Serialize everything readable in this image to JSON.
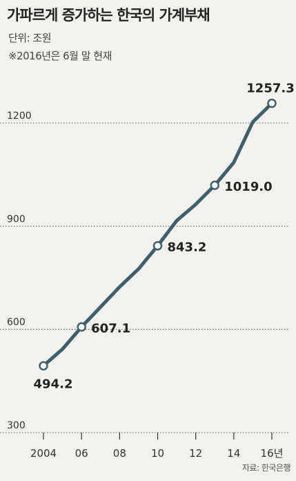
{
  "header": {
    "title": "가파르게 증가하는 한국의 가계부채",
    "unit": "단위: 조원",
    "note": "※2016년은 6월 말 현재"
  },
  "source": "자료: 한국은행",
  "colors": {
    "line": "#405f6a",
    "marker_fill": "#ffffff",
    "grid": "#555555",
    "background": "#f2f1ee",
    "text": "#222222"
  },
  "chart_data": {
    "type": "line",
    "x": [
      2004,
      2005,
      2006,
      2007,
      2008,
      2009,
      2010,
      2011,
      2012,
      2013,
      2014,
      2015,
      2016
    ],
    "series": [
      {
        "values": [
          494.2,
          542.9,
          607.1,
          665.4,
          723.5,
          776.0,
          843.2,
          916.2,
          963.8,
          1019.0,
          1085.3,
          1203.1,
          1257.3
        ]
      }
    ],
    "labeled_points": [
      {
        "x": 2004,
        "label": "494.2"
      },
      {
        "x": 2006,
        "label": "607.1"
      },
      {
        "x": 2010,
        "label": "843.2"
      },
      {
        "x": 2013,
        "label": "1019.0"
      },
      {
        "x": 2016,
        "label": "1257.3"
      }
    ],
    "yticks": [
      300,
      600,
      900,
      1200
    ],
    "ytick_labels": [
      "300",
      "600",
      "900",
      "1200"
    ],
    "xticks": [
      2004,
      2006,
      2008,
      2010,
      2012,
      2014,
      2016
    ],
    "xtick_labels": [
      "2004",
      "06",
      "08",
      "10",
      "12",
      "14",
      "16년"
    ],
    "ylim": [
      300,
      1300
    ],
    "xlim": [
      2004,
      2016
    ],
    "grid": true
  }
}
